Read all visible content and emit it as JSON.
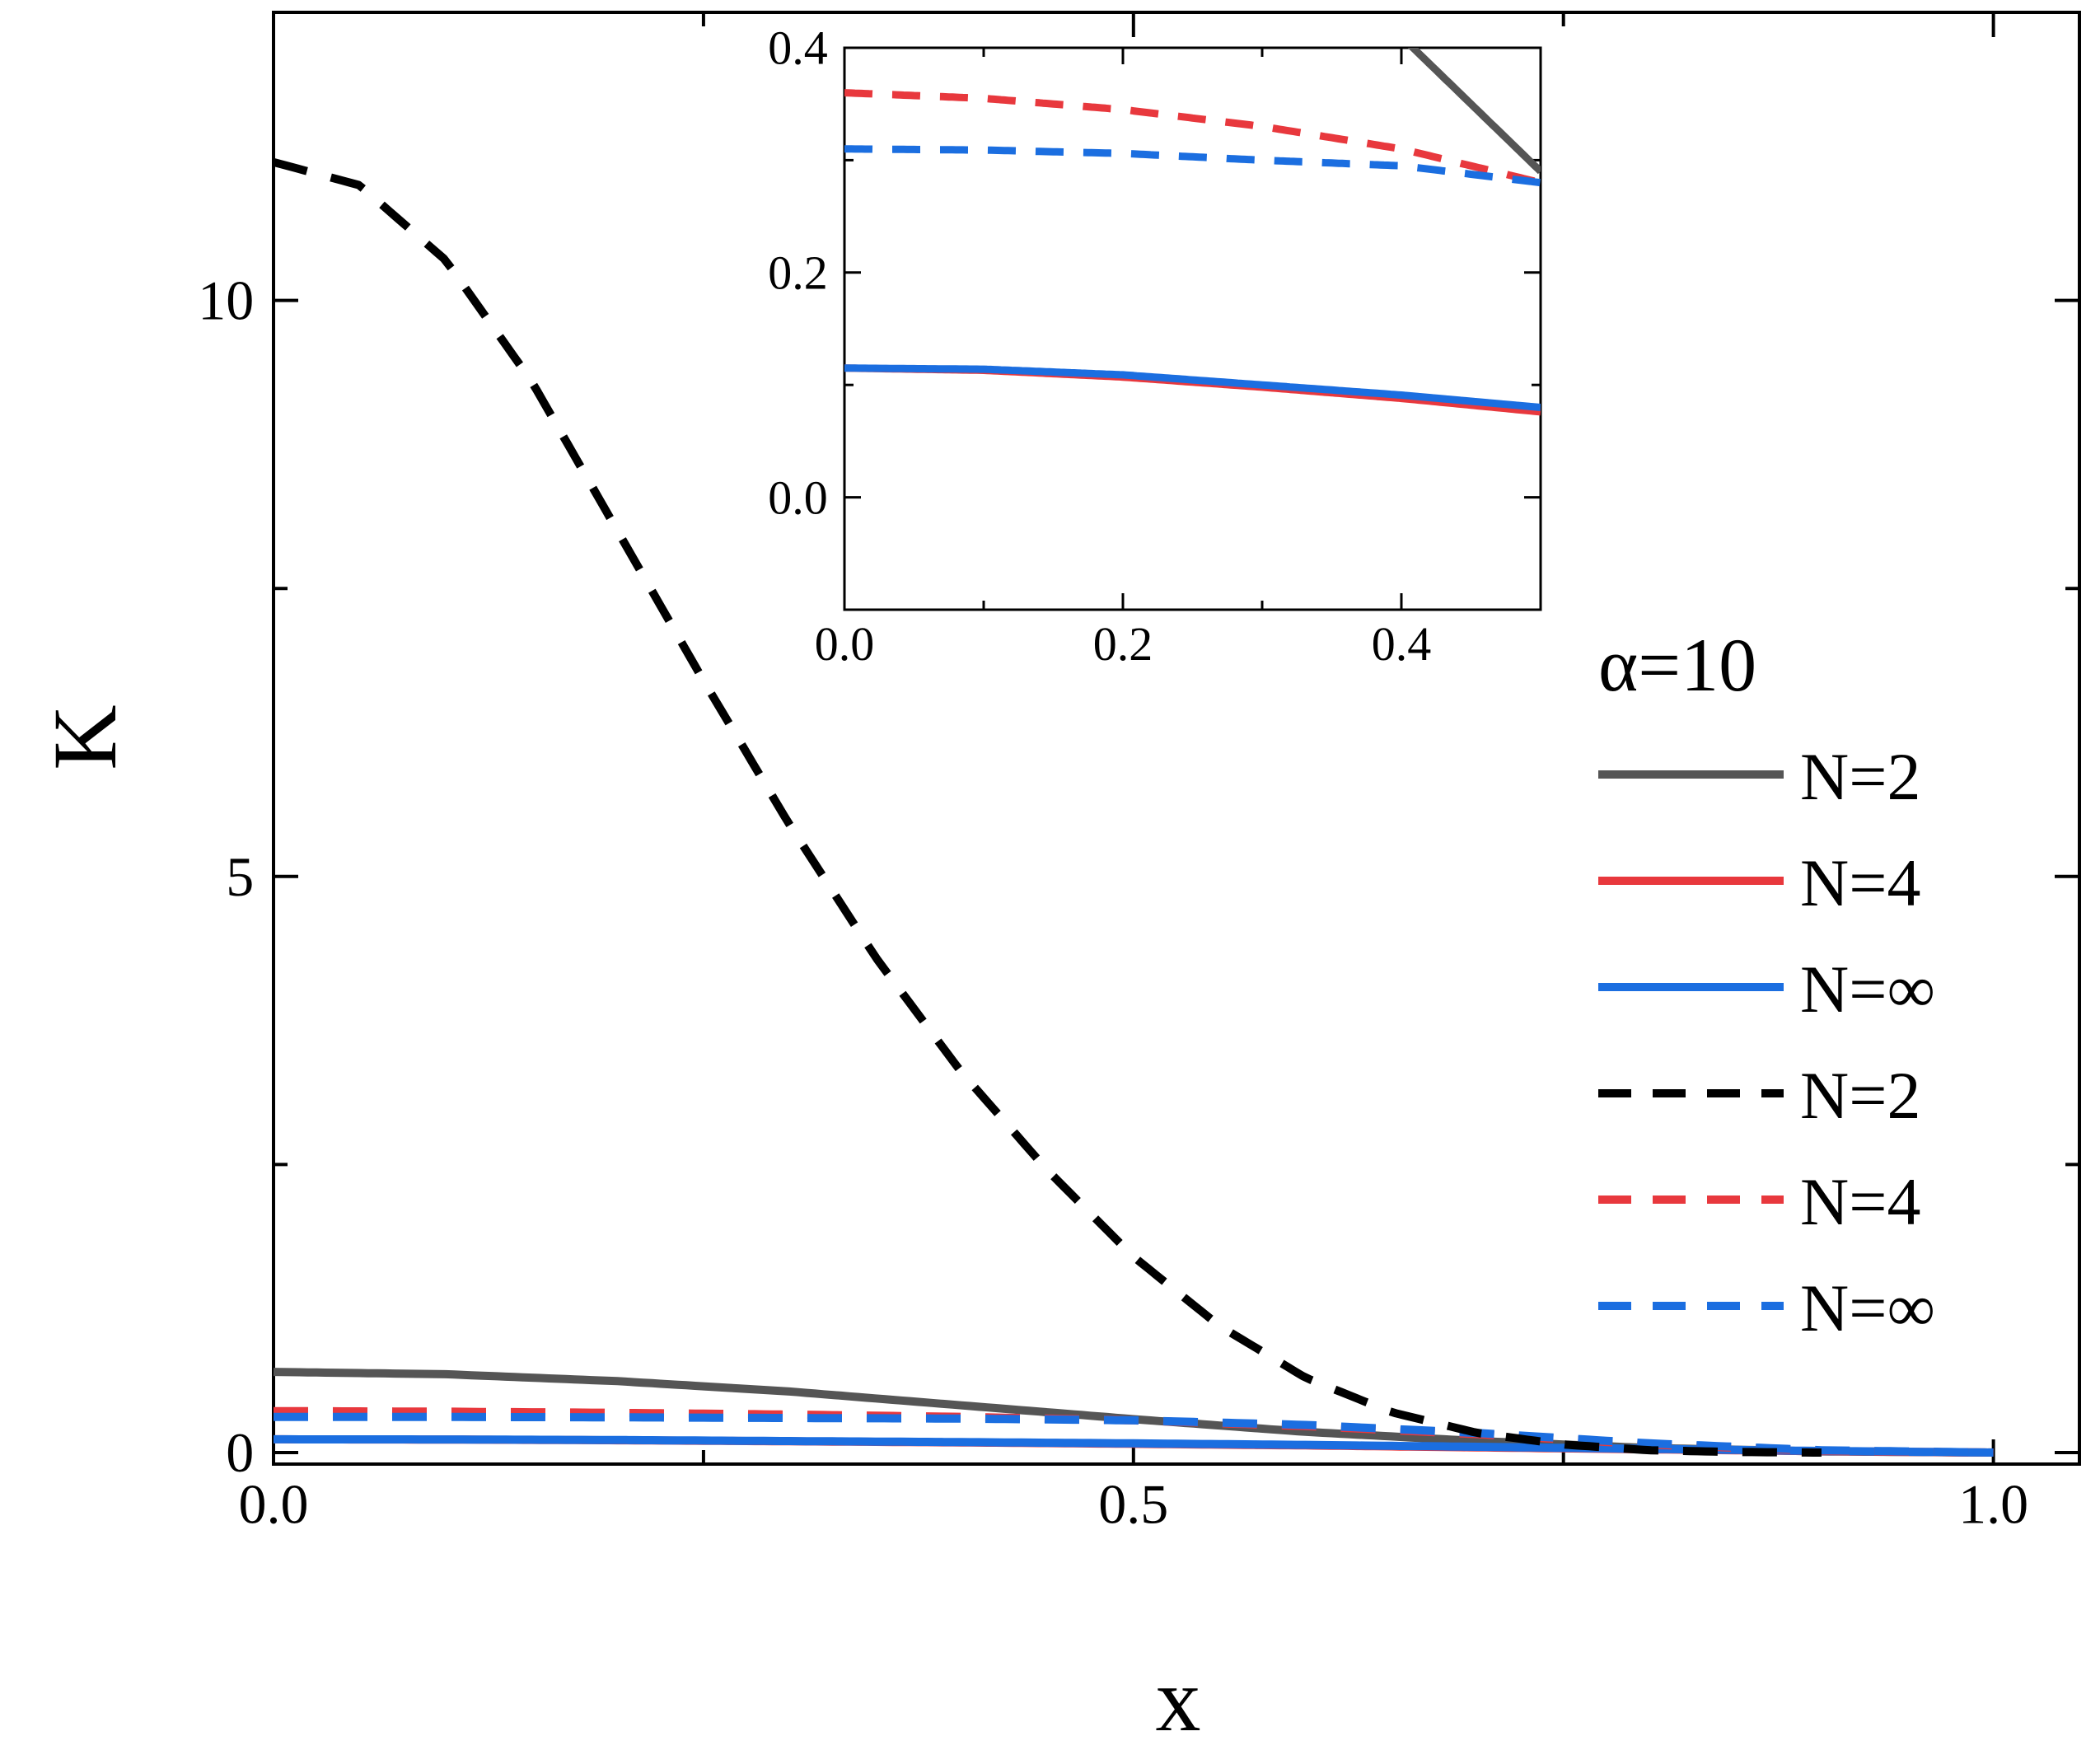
{
  "chart_data": {
    "type": "line",
    "annotation": "α=10",
    "xlabel": "x",
    "ylabel": "K",
    "main": {
      "xlim": [
        0,
        1.05
      ],
      "ylim": [
        -0.1,
        12.5
      ],
      "xticks": [
        0.0,
        0.5,
        1.0
      ],
      "xtick_labels": [
        "0.0",
        "0.5",
        "1.0"
      ],
      "xminor": [
        0.25,
        0.75
      ],
      "yticks": [
        0,
        5,
        10
      ],
      "ytick_labels": [
        "0",
        "5",
        "10"
      ],
      "yminor": [
        2.5,
        7.5
      ]
    },
    "inset": {
      "xlim": [
        0,
        0.5
      ],
      "ylim": [
        -0.1,
        0.4
      ],
      "xticks": [
        0.0,
        0.2,
        0.4
      ],
      "xtick_labels": [
        "0.0",
        "0.2",
        "0.4"
      ],
      "xminor": [
        0.1,
        0.3
      ],
      "yticks": [
        0.0,
        0.2,
        0.4
      ],
      "ytick_labels": [
        "0.0",
        "0.2",
        "0.4"
      ],
      "yminor": [
        0.1,
        0.3
      ]
    },
    "legend_position": "right",
    "series": [
      {
        "name": "N=2",
        "style": "solid",
        "color": "#555555",
        "x": [
          0,
          0.1,
          0.2,
          0.3,
          0.4,
          0.5,
          0.6,
          0.7,
          0.8,
          0.9,
          1.0
        ],
        "y": [
          0.7,
          0.68,
          0.62,
          0.53,
          0.41,
          0.29,
          0.18,
          0.1,
          0.04,
          0.01,
          0.0
        ]
      },
      {
        "name": "N=4",
        "style": "solid",
        "color": "#e8383d",
        "x": [
          0,
          0.1,
          0.2,
          0.3,
          0.4,
          0.5,
          0.6,
          0.7,
          0.8,
          0.9,
          1.0
        ],
        "y": [
          0.115,
          0.113,
          0.107,
          0.098,
          0.088,
          0.076,
          0.062,
          0.045,
          0.028,
          0.012,
          0.0
        ]
      },
      {
        "name": "N=∞",
        "style": "solid",
        "color": "#1b6ee0",
        "x": [
          0,
          0.1,
          0.2,
          0.3,
          0.4,
          0.5,
          0.6,
          0.7,
          0.8,
          0.9,
          1.0
        ],
        "y": [
          0.115,
          0.114,
          0.109,
          0.1,
          0.091,
          0.08,
          0.067,
          0.05,
          0.032,
          0.014,
          0.0
        ]
      },
      {
        "name": "N=2",
        "style": "dashed",
        "color": "#000000",
        "x": [
          0,
          0.05,
          0.1,
          0.15,
          0.2,
          0.25,
          0.3,
          0.35,
          0.4,
          0.45,
          0.5,
          0.55,
          0.6,
          0.65,
          0.7,
          0.75,
          0.8,
          0.85,
          0.9
        ],
        "y": [
          11.2,
          11.0,
          10.35,
          9.3,
          8.0,
          6.7,
          5.45,
          4.3,
          3.3,
          2.45,
          1.7,
          1.1,
          0.65,
          0.35,
          0.17,
          0.07,
          0.02,
          0.005,
          0.0
        ]
      },
      {
        "name": "N=4",
        "style": "dashed",
        "color": "#e8383d",
        "x": [
          0,
          0.1,
          0.2,
          0.3,
          0.4,
          0.5,
          0.6,
          0.7,
          0.8,
          0.9,
          1.0
        ],
        "y": [
          0.36,
          0.355,
          0.345,
          0.33,
          0.31,
          0.28,
          0.23,
          0.16,
          0.07,
          0.015,
          0.0
        ]
      },
      {
        "name": "N=∞",
        "style": "dashed",
        "color": "#1b6ee0",
        "x": [
          0,
          0.1,
          0.2,
          0.3,
          0.4,
          0.5,
          0.6,
          0.7,
          0.8,
          0.9,
          1.0
        ],
        "y": [
          0.31,
          0.309,
          0.306,
          0.3,
          0.295,
          0.28,
          0.24,
          0.17,
          0.08,
          0.02,
          0.0
        ]
      }
    ]
  }
}
